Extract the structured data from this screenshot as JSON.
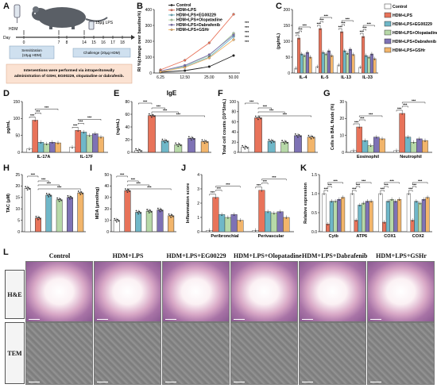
{
  "panels": {
    "a": "A",
    "b": "B",
    "c": "C",
    "d": "D",
    "e": "E",
    "f": "F",
    "g": "G",
    "h": "H",
    "i": "I",
    "j": "J",
    "k": "K",
    "l": "L"
  },
  "timeline": {
    "mouse_label": "HDM",
    "lps_label": "15μg LPS",
    "day_label": "Day",
    "days": [
      "0",
      "7",
      "8",
      "14",
      "15",
      "16",
      "17",
      "18"
    ],
    "sensitization": "Sensitization\n(10μg HDM)",
    "challenge": "Challenge (20μg HDM)",
    "intervention": "Interventions were performed via intraperitoneally administration of GSHr, EG00229, olopatadine or dabrafenib."
  },
  "colors": {
    "control": "#ffffff",
    "hdm_lps": "#e8735a",
    "eg": "#6fb7c8",
    "olo": "#b7d9a8",
    "dab": "#7e72b5",
    "gsh": "#f2b56b"
  },
  "legend_c": [
    "Control",
    "HDM+LPS",
    "HDM+LPS+EG00229",
    "HDM+LPS+Olopatadine",
    "HDM+LPS+Dabrafenib",
    "HDM+LPS+GSHr"
  ],
  "legend_b": [
    "Control",
    "HDM+LPS",
    "HDM+LPS+EG00229",
    "HDM+LPS+Olopatadine",
    "HDM+LPS+Dabrafenib",
    "HDM+LPS+GSHr"
  ],
  "sig": "***",
  "chart_data": [
    {
      "panel": "B",
      "type": "line",
      "ylabel": "RI %(change over baseline%)",
      "x": [
        "6.25",
        "12.50",
        "25.00",
        "50.00"
      ],
      "ylim": [
        0,
        400
      ],
      "yticks": [
        "0",
        "100",
        "200",
        "300",
        "400"
      ],
      "series": [
        {
          "name": "Control",
          "values": [
            5,
            15,
            40,
            110
          ]
        },
        {
          "name": "HDM+LPS",
          "values": [
            20,
            80,
            190,
            370
          ]
        },
        {
          "name": "HDM+LPS+EG00229",
          "values": [
            10,
            40,
            100,
            230
          ]
        },
        {
          "name": "HDM+LPS+Olopatadine",
          "values": [
            10,
            45,
            110,
            250
          ]
        },
        {
          "name": "HDM+LPS+Dabrafenib",
          "values": [
            12,
            48,
            115,
            240
          ]
        },
        {
          "name": "HDM+LPS+GSHr",
          "values": [
            8,
            35,
            95,
            210
          ]
        }
      ]
    },
    {
      "panel": "C",
      "type": "bar",
      "ylabel": "(pg/mL)",
      "categories": [
        "IL-4",
        "IL-5",
        "IL-13",
        "IL-33"
      ],
      "ylim": [
        0,
        200
      ],
      "yticks": [
        "0",
        "50",
        "100",
        "150",
        "200"
      ],
      "series": [
        {
          "name": "Control",
          "values": [
            15,
            20,
            25,
            18
          ]
        },
        {
          "name": "HDM+LPS",
          "values": [
            110,
            140,
            130,
            115
          ]
        },
        {
          "name": "HDM+LPS+EG00229",
          "values": [
            60,
            65,
            70,
            55
          ]
        },
        {
          "name": "HDM+LPS+Olopatadine",
          "values": [
            55,
            60,
            62,
            50
          ]
        },
        {
          "name": "HDM+LPS+Dabrafenib",
          "values": [
            65,
            70,
            75,
            60
          ]
        },
        {
          "name": "HDM+LPS+GSHr",
          "values": [
            50,
            55,
            58,
            45
          ]
        }
      ]
    },
    {
      "panel": "D",
      "type": "bar",
      "ylabel": "pg/mL",
      "categories": [
        "IL-17A",
        "IL-17F"
      ],
      "ylim": [
        0,
        150
      ],
      "yticks": [
        "0",
        "50",
        "100",
        "150"
      ],
      "series": [
        {
          "name": "Control",
          "values": [
            10,
            15
          ]
        },
        {
          "name": "HDM+LPS",
          "values": [
            95,
            65
          ]
        },
        {
          "name": "HDM+LPS+EG00229",
          "values": [
            30,
            60
          ]
        },
        {
          "name": "HDM+LPS+Olopatadine",
          "values": [
            25,
            50
          ]
        },
        {
          "name": "HDM+LPS+Dabrafenib",
          "values": [
            30,
            55
          ]
        },
        {
          "name": "HDM+LPS+GSHr",
          "values": [
            28,
            45
          ]
        }
      ]
    },
    {
      "panel": "E",
      "type": "bar",
      "title": "IgE",
      "ylabel": "(ng/mL)",
      "categories": [
        "Control",
        "HDM+LPS",
        "EG00229",
        "Olopatadine",
        "Dabrafenib",
        "GSHr"
      ],
      "ylim": [
        0,
        80
      ],
      "yticks": [
        "0",
        "20",
        "40",
        "60",
        "80"
      ],
      "values": [
        3,
        58,
        18,
        12,
        22,
        17
      ]
    },
    {
      "panel": "F",
      "type": "bar",
      "ylabel": "Total cell counts (10^5/mL)",
      "categories": [
        "Control",
        "HDM+LPS",
        "EG00229",
        "Olopatadine",
        "Dabrafenib",
        "GSHr"
      ],
      "ylim": [
        0,
        100
      ],
      "yticks": [
        "0",
        "20",
        "40",
        "60",
        "80",
        "100"
      ],
      "values": [
        10,
        68,
        22,
        20,
        33,
        30
      ]
    },
    {
      "panel": "G",
      "type": "bar",
      "ylabel": "Cells in BAL fluids (%)",
      "categories": [
        "Eosinophil",
        "Neutrophil"
      ],
      "ylim": [
        0,
        30
      ],
      "yticks": [
        "0",
        "10",
        "20",
        "30"
      ],
      "series": [
        {
          "name": "Control",
          "values": [
            1,
            1
          ]
        },
        {
          "name": "HDM+LPS",
          "values": [
            15,
            23
          ]
        },
        {
          "name": "HDM+LPS+EG00229",
          "values": [
            7,
            9
          ]
        },
        {
          "name": "HDM+LPS+Olopatadine",
          "values": [
            4,
            6
          ]
        },
        {
          "name": "HDM+LPS+Dabrafenib",
          "values": [
            9,
            8
          ]
        },
        {
          "name": "HDM+LPS+GSHr",
          "values": [
            8,
            7
          ]
        }
      ]
    },
    {
      "panel": "H",
      "type": "bar",
      "ylabel": "TAC (μM)",
      "categories": [
        "Control",
        "HDM+LPS",
        "EG00229",
        "Olopatadine",
        "Dabrafenib",
        "GSHr"
      ],
      "ylim": [
        0,
        25
      ],
      "yticks": [
        "0",
        "5",
        "10",
        "15",
        "20",
        "25"
      ],
      "values": [
        19,
        6,
        16,
        14,
        15,
        17
      ]
    },
    {
      "panel": "I",
      "type": "bar",
      "ylabel": "MDA (μmol/mg)",
      "categories": [
        "Control",
        "HDM+LPS",
        "EG00229",
        "Olopatadine",
        "Dabrafenib",
        "GSHr"
      ],
      "ylim": [
        0,
        50
      ],
      "yticks": [
        "0",
        "10",
        "20",
        "30",
        "40",
        "50"
      ],
      "values": [
        10,
        36,
        17,
        18,
        19,
        14
      ]
    },
    {
      "panel": "J",
      "type": "bar",
      "ylabel": "Inflammation score",
      "categories": [
        "Peribronchial",
        "Perivascular"
      ],
      "ylim": [
        0,
        4
      ],
      "yticks": [
        "0",
        "1",
        "2",
        "3",
        "4"
      ],
      "series": [
        {
          "name": "Control",
          "values": [
            0.1,
            0.1
          ]
        },
        {
          "name": "HDM+LPS",
          "values": [
            2.4,
            2.9
          ]
        },
        {
          "name": "HDM+LPS+EG00229",
          "values": [
            1.2,
            1.4
          ]
        },
        {
          "name": "HDM+LPS+Olopatadine",
          "values": [
            1.0,
            1.3
          ]
        },
        {
          "name": "HDM+LPS+Dabrafenib",
          "values": [
            1.2,
            1.4
          ]
        },
        {
          "name": "HDM+LPS+GSHr",
          "values": [
            0.8,
            1.0
          ]
        }
      ]
    },
    {
      "panel": "K",
      "type": "bar",
      "ylabel": "Relative expression",
      "categories": [
        "Cytb",
        "ATP6",
        "COX1",
        "COX2"
      ],
      "ylim": [
        0,
        1.5
      ],
      "yticks": [
        "0.0",
        "0.5",
        "1.0",
        "1.5"
      ],
      "series": [
        {
          "name": "Control",
          "values": [
            1.0,
            1.0,
            1.0,
            1.0
          ]
        },
        {
          "name": "HDM+LPS",
          "values": [
            0.2,
            0.3,
            0.25,
            0.3
          ]
        },
        {
          "name": "HDM+LPS+EG00229",
          "values": [
            0.8,
            0.7,
            0.8,
            0.8
          ]
        },
        {
          "name": "HDM+LPS+Olopatadine",
          "values": [
            0.8,
            0.75,
            0.85,
            0.75
          ]
        },
        {
          "name": "HDM+LPS+Dabrafenib",
          "values": [
            0.85,
            0.8,
            0.8,
            0.85
          ]
        },
        {
          "name": "HDM+LPS+GSHr",
          "values": [
            0.9,
            0.8,
            0.85,
            0.9
          ]
        }
      ]
    }
  ],
  "images": {
    "columns": [
      "Control",
      "HDM+LPS",
      "HDM+LPS+EG00229",
      "HDM+LPS+Olopatadine",
      "HDM+LPS+Dabrafenib",
      "HDM+LPS+GSHr"
    ],
    "rows": [
      "H&E",
      "TEM"
    ]
  }
}
